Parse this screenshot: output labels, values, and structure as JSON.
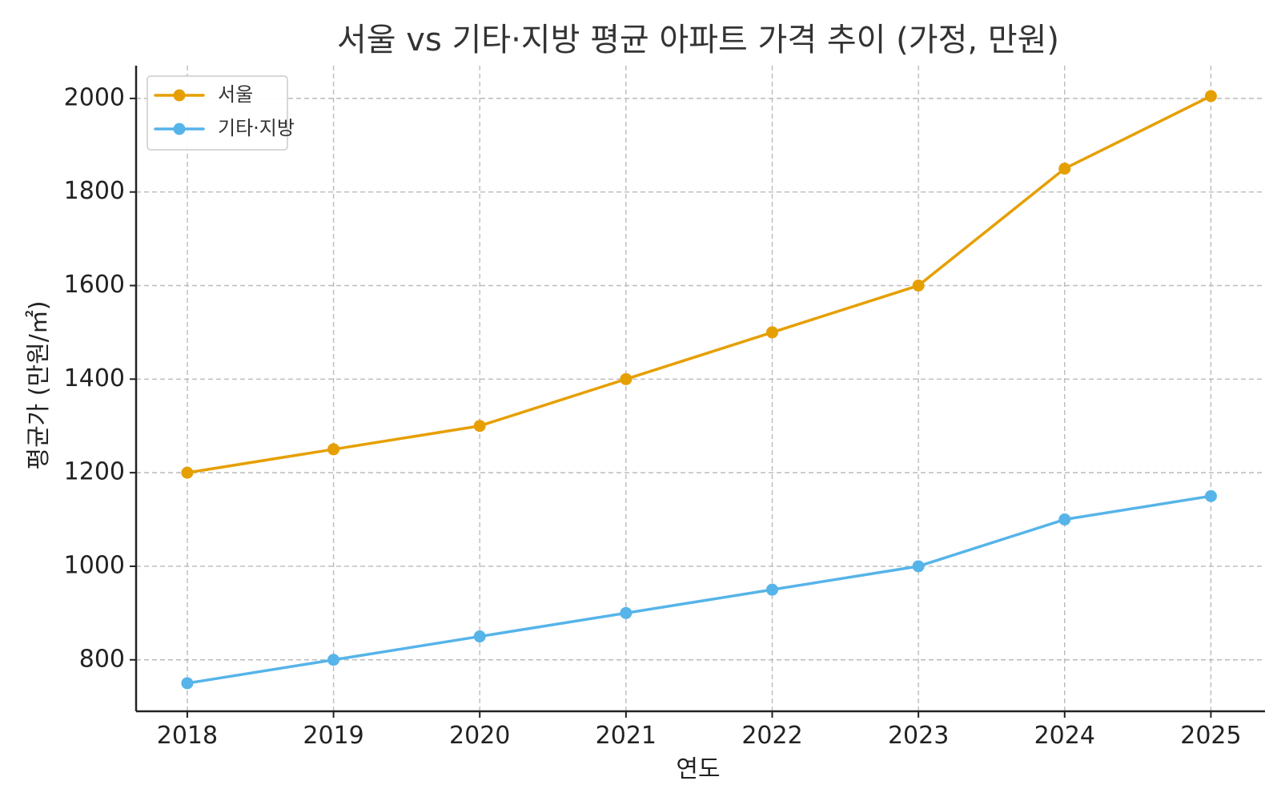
{
  "chart_data": {
    "type": "line",
    "title": "서울 vs 기타·지방 평균 아파트 가격 추이 (가정, 만원)",
    "xlabel": "연도",
    "ylabel": "평균가 (만원/㎡)",
    "x": [
      2018,
      2019,
      2020,
      2021,
      2022,
      2023,
      2024,
      2025
    ],
    "xtick_labels": [
      "2018",
      "2019",
      "2020",
      "2021",
      "2022",
      "2023",
      "2024",
      "2025"
    ],
    "xlim": [
      2017.65,
      2025.37
    ],
    "ylim": [
      690,
      2070
    ],
    "yticks": [
      800,
      1000,
      1200,
      1400,
      1600,
      1800,
      2000
    ],
    "ytick_labels": [
      "800",
      "1000",
      "1200",
      "1400",
      "1600",
      "1800",
      "2000"
    ],
    "grid": true,
    "legend_position": "top-left",
    "series": [
      {
        "name": "서울",
        "color": "#E69F00",
        "values": [
          1200,
          1250,
          1300,
          1400,
          1500,
          1600,
          1850,
          2005
        ]
      },
      {
        "name": "기타·지방",
        "color": "#56B4E9",
        "values": [
          750,
          800,
          850,
          900,
          950,
          1000,
          1100,
          1150
        ]
      }
    ]
  }
}
